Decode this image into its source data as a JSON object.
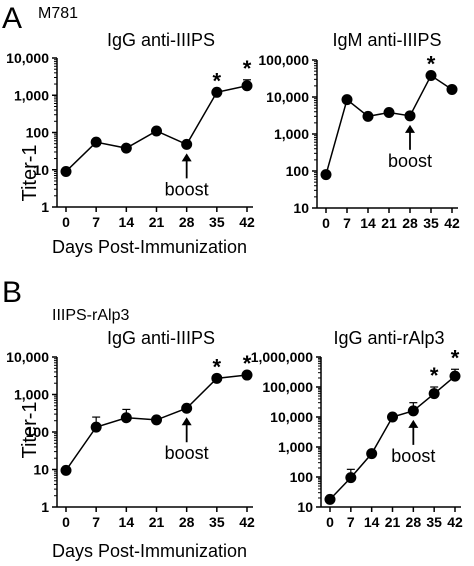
{
  "panels": [
    {
      "letter": "A",
      "subtitle": "M781",
      "ylabel": "Titer-1",
      "xlabel": "Days  Post-Immunization"
    },
    {
      "letter": "B",
      "subtitle": "IIIPS-rAlp3",
      "ylabel": "Titer-1",
      "xlabel": "Days  Post-Immunization"
    }
  ],
  "chart_data": [
    {
      "type": "line",
      "title": "IgG  anti-IIIPS",
      "x": [
        0,
        7,
        14,
        21,
        28,
        35,
        42
      ],
      "xticks": [
        "0",
        "7",
        "14",
        "21",
        "28",
        "35",
        "42"
      ],
      "y": [
        9,
        55,
        38,
        110,
        48,
        1200,
        1800
      ],
      "err_up": [
        null,
        null,
        null,
        null,
        null,
        null,
        2600
      ],
      "star_days": [
        35,
        42
      ],
      "ylog": true,
      "ylim": [
        1,
        10000
      ],
      "yticks": [
        1,
        10,
        100,
        1000,
        10000
      ],
      "yticklabels": [
        "1",
        "10",
        "100",
        "1,000",
        "10,000"
      ],
      "annotation": {
        "text": "boost",
        "day": 28
      },
      "grid": false
    },
    {
      "type": "line",
      "title": "IgM  anti-IIIPS",
      "x": [
        0,
        7,
        14,
        21,
        28,
        35,
        42
      ],
      "xticks": [
        "0",
        "7",
        "14",
        "21",
        "28",
        "35",
        "42"
      ],
      "y": [
        80,
        8500,
        3000,
        3800,
        3100,
        38000,
        16000
      ],
      "err_up": [
        null,
        null,
        null,
        null,
        null,
        null,
        null
      ],
      "star_days": [
        35
      ],
      "ylog": true,
      "ylim": [
        10,
        100000
      ],
      "yticks": [
        10,
        100,
        1000,
        10000,
        100000
      ],
      "yticklabels": [
        "10",
        "100",
        "1,000",
        "10,000",
        "100,000"
      ],
      "annotation": {
        "text": "boost",
        "day": 28
      },
      "grid": false
    },
    {
      "type": "line",
      "title": "IgG  anti-IIIPS",
      "x": [
        0,
        7,
        14,
        21,
        28,
        35,
        42
      ],
      "xticks": [
        "0",
        "7",
        "14",
        "21",
        "28",
        "35",
        "42"
      ],
      "y": [
        9.5,
        135,
        240,
        210,
        430,
        2700,
        3300
      ],
      "err_up": [
        null,
        250,
        400,
        null,
        null,
        null,
        null
      ],
      "star_days": [
        35,
        42
      ],
      "ylog": true,
      "ylim": [
        1,
        10000
      ],
      "yticks": [
        1,
        10,
        100,
        1000,
        10000
      ],
      "yticklabels": [
        "1",
        "10",
        "100",
        "1,000",
        "10,000"
      ],
      "annotation": {
        "text": "boost",
        "day": 28
      },
      "grid": false
    },
    {
      "type": "line",
      "title": "IgG  anti-rAlp3",
      "x": [
        0,
        7,
        14,
        21,
        28,
        35,
        42
      ],
      "xticks": [
        "0",
        "7",
        "14",
        "21",
        "28",
        "35",
        "42"
      ],
      "y": [
        18,
        95,
        600,
        10000,
        16000,
        60000,
        230000
      ],
      "err_up": [
        null,
        180,
        null,
        null,
        30000,
        100000,
        390000
      ],
      "star_days": [
        35,
        42
      ],
      "ylog": true,
      "ylim": [
        10,
        1000000
      ],
      "yticks": [
        10,
        100,
        1000,
        10000,
        100000,
        1000000
      ],
      "yticklabels": [
        "10",
        "100",
        "1,000",
        "10,000",
        "100,000",
        "1,000,000"
      ],
      "annotation": {
        "text": "boost",
        "day": 28
      },
      "grid": false
    }
  ],
  "star_symbol": "*",
  "colors": {
    "ink": "#000000",
    "background": "#ffffff"
  }
}
